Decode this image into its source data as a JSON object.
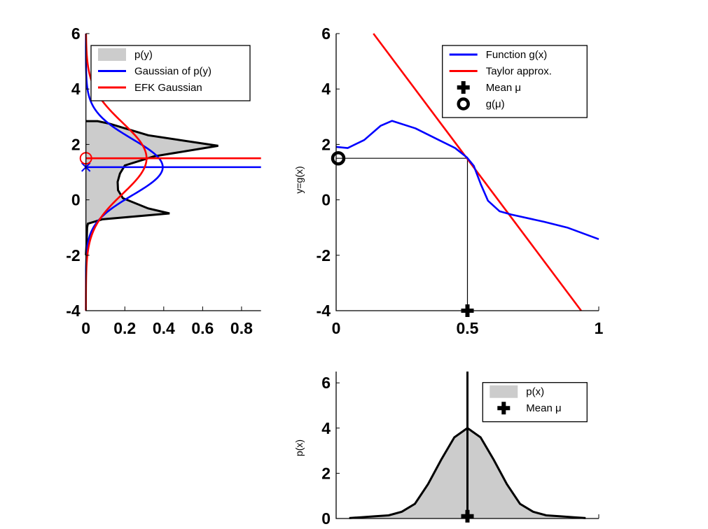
{
  "chart_data": [
    {
      "type": "area",
      "orientation": "horizontal",
      "xlim": [
        0,
        0.9
      ],
      "ylim": [
        -4,
        6
      ],
      "xticks": [
        "0",
        "0.2",
        "0.4",
        "0.6",
        "0.8"
      ],
      "yticks": [
        "6",
        "4",
        "2",
        "0",
        "-2",
        "-4"
      ],
      "legend": {
        "position": "top-right",
        "entries": [
          "p(y)",
          "Gaussian of p(y)",
          "EFK Gaussian"
        ]
      },
      "series": [
        {
          "name": "p(y)",
          "color": "#cccccc",
          "y": [
            -2.0,
            -1.5,
            -1.0,
            -0.86,
            -0.7,
            -0.49,
            -0.31,
            0.06,
            0.35,
            0.65,
            0.95,
            1.24,
            1.57,
            1.95,
            2.33,
            2.75,
            2.84,
            2.84
          ],
          "p": [
            0.0,
            0.004,
            0.006,
            0.01,
            0.086,
            0.43,
            0.32,
            0.19,
            0.165,
            0.163,
            0.175,
            0.2,
            0.35,
            0.68,
            0.32,
            0.12,
            0.06,
            0.0
          ]
        },
        {
          "name": "Gaussian of p(y)",
          "color": "#0000ff",
          "mean": 1.18,
          "std": 1.01
        },
        {
          "name": "EFK Gaussian",
          "color": "#ff0000",
          "mean": 1.5,
          "std": 1.28
        }
      ],
      "markers": [
        {
          "shape": "x",
          "color": "#0000ff",
          "x": 0,
          "y": 1.18
        },
        {
          "shape": "circle",
          "color": "#ff0000",
          "x": 0,
          "y": 1.5
        }
      ]
    },
    {
      "type": "line",
      "xlim": [
        0,
        1
      ],
      "ylim": [
        -4,
        6
      ],
      "xticks": [
        "0",
        "0.5",
        "1"
      ],
      "yticks": [
        "6",
        "4",
        "2",
        "0",
        "-2",
        "-4"
      ],
      "ylabel": "y=g(x)",
      "legend": {
        "position": "top-right",
        "entries": [
          "Function g(x)",
          "Taylor approx.",
          "Mean μ",
          "g(μ)"
        ]
      },
      "series": [
        {
          "name": "Function g(x)",
          "color": "#0000ff",
          "x": [
            0,
            0.044,
            0.107,
            0.169,
            0.213,
            0.302,
            0.391,
            0.453,
            0.498,
            0.524,
            0.551,
            0.578,
            0.622,
            0.667,
            0.791,
            0.88,
            1.0
          ],
          "y": [
            1.91,
            1.87,
            2.16,
            2.67,
            2.85,
            2.58,
            2.16,
            1.87,
            1.53,
            1.23,
            0.56,
            -0.03,
            -0.41,
            -0.53,
            -0.79,
            -1.0,
            -1.42
          ]
        },
        {
          "name": "Taylor approx.",
          "color": "#ff0000",
          "x": [
            0.142,
            0.933
          ],
          "y": [
            6.0,
            -4.0
          ]
        }
      ],
      "mean_mu": {
        "x": 0.5,
        "y": -4
      },
      "g_mu": {
        "x": 0,
        "y": 1.5
      }
    },
    {
      "type": "area",
      "xlim": [
        0,
        1
      ],
      "ylim": [
        0,
        6.5
      ],
      "yticks": [
        "6",
        "4",
        "2",
        "0"
      ],
      "ylabel": "p(x)",
      "legend": {
        "position": "top-right",
        "entries": [
          "p(x)",
          "Mean μ"
        ]
      },
      "series": [
        {
          "name": "p(x)",
          "color": "#cccccc",
          "x": [
            0.05,
            0.1,
            0.15,
            0.2,
            0.25,
            0.3,
            0.35,
            0.4,
            0.45,
            0.5,
            0.55,
            0.6,
            0.65,
            0.7,
            0.75,
            0.8,
            0.85,
            0.9,
            0.95
          ],
          "y": [
            0.02,
            0.06,
            0.1,
            0.14,
            0.3,
            0.65,
            1.52,
            2.6,
            3.59,
            4.0,
            3.59,
            2.6,
            1.52,
            0.65,
            0.3,
            0.14,
            0.1,
            0.06,
            0.02
          ]
        }
      ],
      "mean_mu": {
        "x": 0.5,
        "y": 0.1
      }
    }
  ]
}
